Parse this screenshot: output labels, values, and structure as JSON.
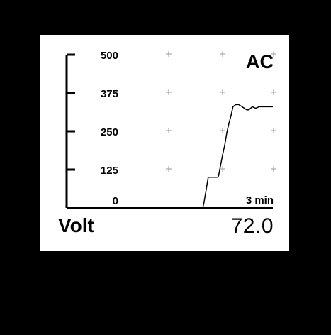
{
  "display": {
    "mode": "AC",
    "unit": "Volt",
    "reading": "72.0",
    "time_scale": "3 min"
  },
  "chart_data": {
    "type": "line",
    "ylim": [
      0,
      500
    ],
    "y_ticks": [
      "500",
      "375",
      "250",
      "125",
      "0"
    ],
    "xlim": [
      0,
      3
    ],
    "grid": "crosshair markers",
    "series": [
      {
        "x": [
          1.95,
          1.98,
          2.0,
          2.03,
          2.06,
          2.08,
          2.2,
          2.21,
          2.24,
          2.27,
          2.3,
          2.33,
          2.36,
          2.39,
          2.42,
          2.46,
          2.5,
          2.54,
          2.62,
          2.65,
          2.7,
          2.75,
          2.8,
          2.86,
          2.9,
          3.0
        ],
        "y": [
          0,
          0,
          20,
          60,
          100,
          100,
          100,
          105,
          140,
          175,
          205,
          245,
          275,
          300,
          330,
          337,
          337,
          332,
          320,
          320,
          330,
          325,
          330,
          330,
          330,
          330
        ]
      }
    ]
  }
}
